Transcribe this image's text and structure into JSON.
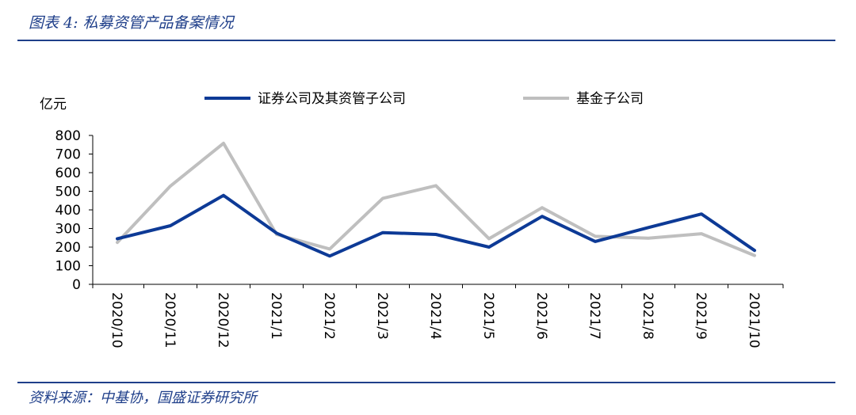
{
  "figure": {
    "title": "图表 4:  私募资管产品备案情况",
    "source": "资料来源：中基协，国盛证券研究所"
  },
  "colors": {
    "accent": "#1f3f8a",
    "series_1": "#0d3a96",
    "series_2": "#bfbfbf"
  },
  "chart_data": {
    "type": "line",
    "unit_label": "亿元",
    "categories": [
      "2020/10",
      "2020/11",
      "2020/12",
      "2021/1",
      "2021/2",
      "2021/3",
      "2021/4",
      "2021/5",
      "2021/6",
      "2021/7",
      "2021/8",
      "2021/9",
      "2021/10"
    ],
    "ylim": [
      0,
      800
    ],
    "yticks": [
      0,
      100,
      200,
      300,
      400,
      500,
      600,
      700,
      800
    ],
    "series": [
      {
        "name": "证券公司及其资管子公司",
        "color": "#0d3a96",
        "values": [
          245,
          315,
          478,
          275,
          152,
          278,
          268,
          200,
          365,
          230,
          305,
          378,
          182
        ]
      },
      {
        "name": "基金子公司",
        "color": "#bfbfbf",
        "values": [
          225,
          528,
          758,
          268,
          190,
          462,
          530,
          245,
          412,
          258,
          248,
          272,
          155
        ]
      }
    ],
    "legend_position": "top",
    "grid": false
  }
}
